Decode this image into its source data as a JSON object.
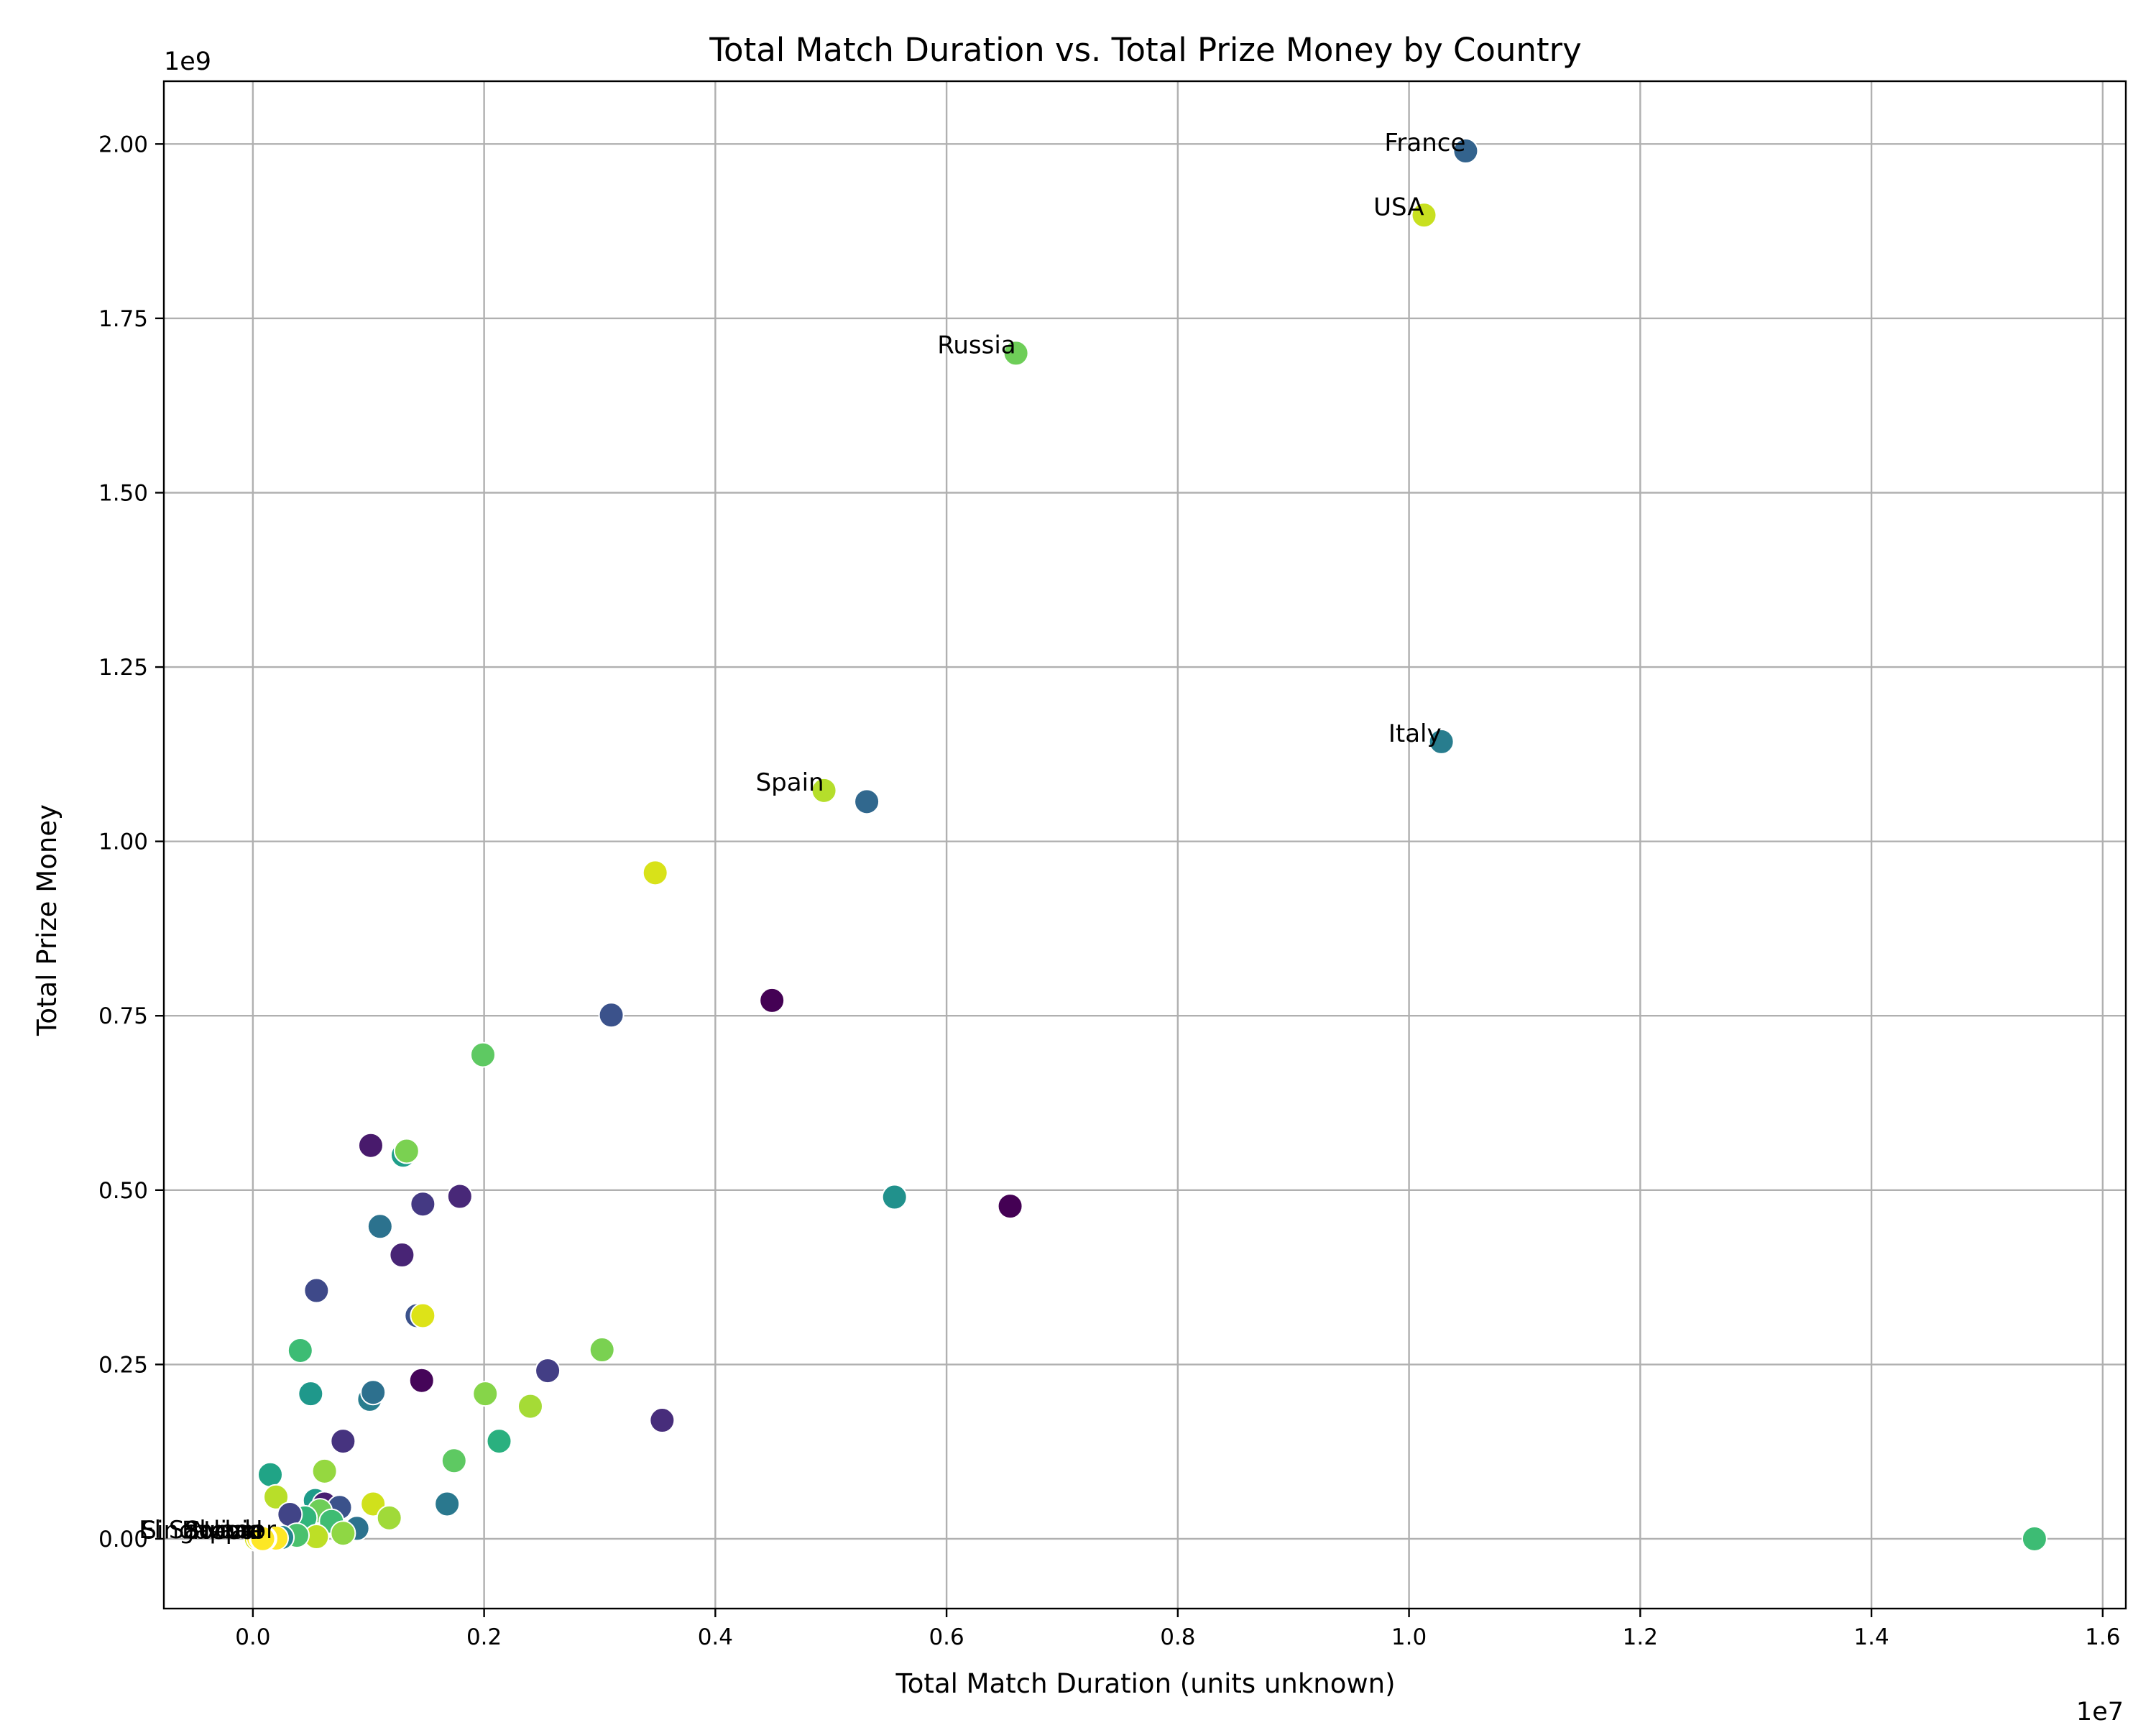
{
  "chart_data": {
    "type": "scatter",
    "title": "Total Match Duration vs. Total Prize Money by Country",
    "xlabel": "Total Match Duration (units unknown)",
    "ylabel": "Total Prize Money",
    "x_offset_label": "1e7",
    "y_offset_label": "1e9",
    "xlim": [
      -0.077,
      1.62
    ],
    "ylim": [
      -0.1,
      2.09
    ],
    "x_unit_multiplier": 10000000,
    "y_unit_multiplier": 1000000000,
    "x_ticks": [
      0.0,
      0.2,
      0.4,
      0.6,
      0.8,
      1.0,
      1.2,
      1.4,
      1.6
    ],
    "x_tick_labels": [
      "0.0",
      "0.2",
      "0.4",
      "0.6",
      "0.8",
      "1.0",
      "1.2",
      "1.4",
      "1.6"
    ],
    "y_ticks": [
      0.0,
      0.25,
      0.5,
      0.75,
      1.0,
      1.25,
      1.5,
      1.75,
      2.0
    ],
    "y_tick_labels": [
      "0.00",
      "0.25",
      "0.50",
      "0.75",
      "1.00",
      "1.25",
      "1.50",
      "1.75",
      "2.00"
    ],
    "grid": true,
    "legend": "none",
    "colormap": "viridis",
    "points": [
      {
        "x": 1.049,
        "y": 1.99,
        "color": "#33638d",
        "label": "France"
      },
      {
        "x": 1.013,
        "y": 1.898,
        "color": "#c8e020",
        "label": "USA"
      },
      {
        "x": 0.66,
        "y": 1.7,
        "color": "#6ece58",
        "label": "Russia"
      },
      {
        "x": 1.028,
        "y": 1.143,
        "color": "#287d8e",
        "label": "Italy"
      },
      {
        "x": 0.494,
        "y": 1.073,
        "color": "#b5de2b",
        "label": "Spain"
      },
      {
        "x": 0.531,
        "y": 1.057,
        "color": "#31688e"
      },
      {
        "x": 0.348,
        "y": 0.955,
        "color": "#d8e219"
      },
      {
        "x": 0.449,
        "y": 0.772,
        "color": "#440154"
      },
      {
        "x": 0.31,
        "y": 0.751,
        "color": "#3b528b"
      },
      {
        "x": 0.199,
        "y": 0.694,
        "color": "#5ec962"
      },
      {
        "x": 0.102,
        "y": 0.564,
        "color": "#481a6c"
      },
      {
        "x": 0.13,
        "y": 0.55,
        "color": "#1f9e89"
      },
      {
        "x": 0.133,
        "y": 0.556,
        "color": "#7ad151"
      },
      {
        "x": 0.179,
        "y": 0.491,
        "color": "#482878"
      },
      {
        "x": 0.147,
        "y": 0.48,
        "color": "#443983"
      },
      {
        "x": 0.555,
        "y": 0.49,
        "color": "#21918c"
      },
      {
        "x": 0.655,
        "y": 0.477,
        "color": "#440154"
      },
      {
        "x": 0.11,
        "y": 0.448,
        "color": "#2c728e"
      },
      {
        "x": 0.129,
        "y": 0.407,
        "color": "#482475"
      },
      {
        "x": 0.055,
        "y": 0.356,
        "color": "#3e4989"
      },
      {
        "x": 0.142,
        "y": 0.32,
        "color": "#3b528b"
      },
      {
        "x": 0.147,
        "y": 0.32,
        "color": "#dde318"
      },
      {
        "x": 0.041,
        "y": 0.27,
        "color": "#3dbc74"
      },
      {
        "x": 0.302,
        "y": 0.271,
        "color": "#7ad151"
      },
      {
        "x": 0.255,
        "y": 0.241,
        "color": "#433e85"
      },
      {
        "x": 0.146,
        "y": 0.227,
        "color": "#450559"
      },
      {
        "x": 0.05,
        "y": 0.208,
        "color": "#1f988b"
      },
      {
        "x": 0.201,
        "y": 0.208,
        "color": "#86d549"
      },
      {
        "x": 0.101,
        "y": 0.2,
        "color": "#287d8e"
      },
      {
        "x": 0.104,
        "y": 0.21,
        "color": "#2d708e"
      },
      {
        "x": 0.24,
        "y": 0.19,
        "color": "#a5db36"
      },
      {
        "x": 0.354,
        "y": 0.17,
        "color": "#472d7b"
      },
      {
        "x": 0.213,
        "y": 0.14,
        "color": "#2ab07f"
      },
      {
        "x": 0.078,
        "y": 0.14,
        "color": "#46337f"
      },
      {
        "x": 0.174,
        "y": 0.112,
        "color": "#5ec962"
      },
      {
        "x": 0.062,
        "y": 0.097,
        "color": "#95d840"
      },
      {
        "x": 0.015,
        "y": 0.092,
        "color": "#20a486"
      },
      {
        "x": 0.168,
        "y": 0.05,
        "color": "#2a788e"
      },
      {
        "x": 0.02,
        "y": 0.06,
        "color": "#b8de29"
      },
      {
        "x": 0.054,
        "y": 0.055,
        "color": "#1e9b8a"
      },
      {
        "x": 0.062,
        "y": 0.05,
        "color": "#482071"
      },
      {
        "x": 0.104,
        "y": 0.05,
        "color": "#d0e11c"
      },
      {
        "x": 0.118,
        "y": 0.03,
        "color": "#a0da39"
      },
      {
        "x": 0.075,
        "y": 0.045,
        "color": "#3b528b"
      },
      {
        "x": 0.058,
        "y": 0.04,
        "color": "#6ece58"
      },
      {
        "x": 0.045,
        "y": 0.03,
        "color": "#31b57b"
      },
      {
        "x": 0.032,
        "y": 0.035,
        "color": "#414487"
      },
      {
        "x": 0.068,
        "y": 0.025,
        "color": "#3fbc73"
      },
      {
        "x": 0.09,
        "y": 0.015,
        "color": "#2c728e"
      },
      {
        "x": 0.078,
        "y": 0.008,
        "color": "#8fd744"
      },
      {
        "x": 0.055,
        "y": 0.003,
        "color": "#bddf26"
      },
      {
        "x": 0.038,
        "y": 0.005,
        "color": "#4ac16d"
      },
      {
        "x": 0.025,
        "y": 0.002,
        "color": "#25848e"
      },
      {
        "x": 0.012,
        "y": 0.001,
        "color": "#fde725"
      },
      {
        "x": 0.008,
        "y": 0.0,
        "color": "#c2df23"
      },
      {
        "x": 0.003,
        "y": 0.0,
        "color": "#d2e21b"
      },
      {
        "x": 0.005,
        "y": 0.001,
        "color": "#fde725"
      },
      {
        "x": 0.02,
        "y": 0.001,
        "color": "#fde725",
        "label": "El Salvador"
      },
      {
        "x": 0.01,
        "y": 0.0005,
        "color": "#e7e419",
        "label": "Singapore"
      },
      {
        "x": 0.0075,
        "y": 0.0003,
        "color": "#fde725",
        "label": "Sudan"
      },
      {
        "x": 0.009,
        "y": 0.0004,
        "color": "#f1e51d",
        "label": "Bolivia"
      },
      {
        "x": 0.0085,
        "y": 0.0002,
        "color": "#fde725",
        "label": "Nepal"
      },
      {
        "x": 1.541,
        "y": 0.0,
        "color": "#3dbc74"
      }
    ]
  }
}
